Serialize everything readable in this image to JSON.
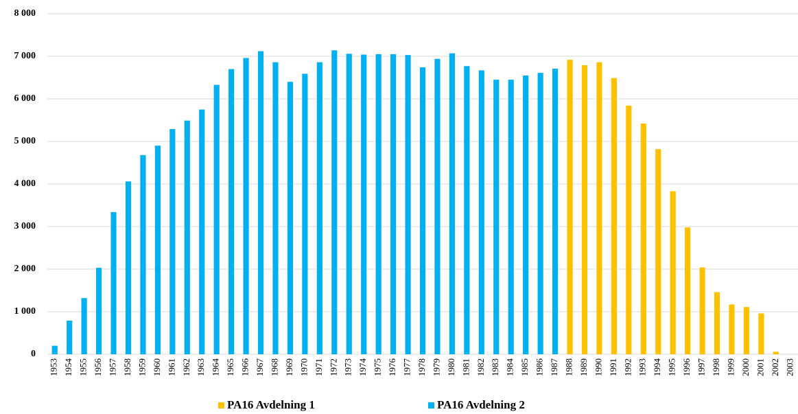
{
  "chart_data": {
    "type": "bar",
    "categories": [
      "1953",
      "1954",
      "1955",
      "1956",
      "1957",
      "1958",
      "1959",
      "1960",
      "1961",
      "1962",
      "1963",
      "1964",
      "1965",
      "1966",
      "1967",
      "1968",
      "1969",
      "1970",
      "1971",
      "1972",
      "1973",
      "1974",
      "1975",
      "1976",
      "1977",
      "1978",
      "1979",
      "1980",
      "1981",
      "1982",
      "1983",
      "1984",
      "1985",
      "1986",
      "1987",
      "1988",
      "1989",
      "1990",
      "1991",
      "1992",
      "1993",
      "1994",
      "1995",
      "1996",
      "1997",
      "1998",
      "1999",
      "2000",
      "2001",
      "2002",
      "2003"
    ],
    "series": [
      {
        "name": "PA16 Avdelning 1",
        "color": "#FFC000",
        "values": [
          null,
          null,
          null,
          null,
          null,
          null,
          null,
          null,
          null,
          null,
          null,
          null,
          null,
          null,
          null,
          null,
          null,
          null,
          null,
          null,
          null,
          null,
          null,
          null,
          null,
          null,
          null,
          null,
          null,
          null,
          null,
          null,
          null,
          null,
          null,
          6920,
          6790,
          6860,
          6490,
          5840,
          5420,
          4820,
          3830,
          2980,
          2040,
          1460,
          1170,
          1110,
          960,
          60,
          null
        ]
      },
      {
        "name": "PA16 Avdelning 2",
        "color": "#00B0F0",
        "values": [
          200,
          790,
          1320,
          2030,
          3340,
          4060,
          4680,
          4900,
          5290,
          5490,
          5750,
          6330,
          6700,
          6960,
          7120,
          6860,
          6400,
          6590,
          6860,
          7140,
          7060,
          7040,
          7050,
          7050,
          7030,
          6740,
          6940,
          7070,
          6770,
          6670,
          6450,
          6450,
          6550,
          6610,
          6710,
          null,
          null,
          null,
          null,
          null,
          null,
          null,
          null,
          null,
          null,
          null,
          null,
          null,
          null,
          null,
          null
        ]
      }
    ],
    "ylim": [
      0,
      8000
    ],
    "yticks": [
      0,
      {
        "value": 1000,
        "label": "1 000"
      },
      {
        "value": 2000,
        "label": "2 000"
      },
      {
        "value": 3000,
        "label": "3 000"
      },
      {
        "value": 4000,
        "label": "4 000"
      },
      {
        "value": 5000,
        "label": "5 000"
      },
      {
        "value": 6000,
        "label": "6 000"
      },
      {
        "value": 7000,
        "label": "7 000"
      },
      {
        "value": 8000,
        "label": "8 000"
      }
    ],
    "grid": true,
    "legend": "bottom"
  }
}
